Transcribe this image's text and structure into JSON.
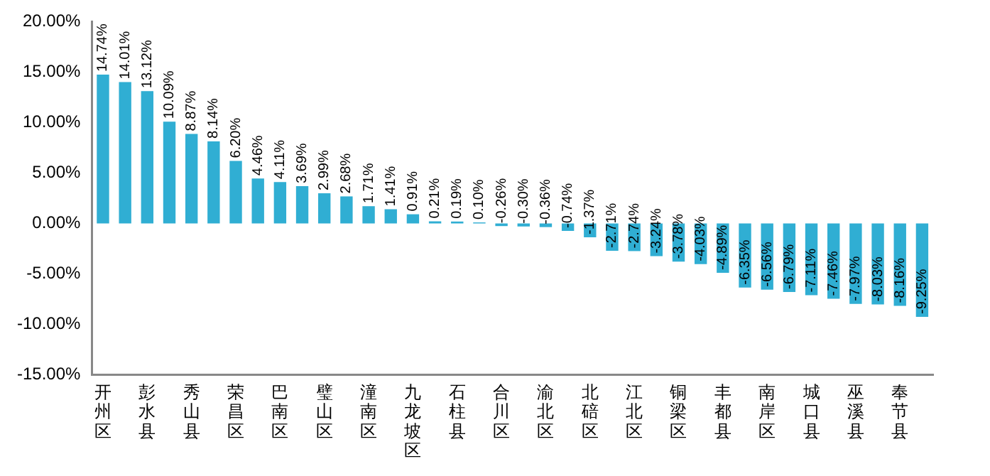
{
  "chart_data": {
    "type": "bar",
    "categories": [
      "开州区",
      null,
      "彭水县",
      null,
      "秀山县",
      null,
      "荣昌区",
      null,
      "巴南区",
      null,
      "璧山区",
      null,
      "潼南区",
      null,
      "九龙坡区",
      null,
      "石柱县",
      null,
      "合川区",
      null,
      "渝北区",
      null,
      "北碚区",
      null,
      "江北区",
      null,
      "铜梁区",
      null,
      "丰都县",
      null,
      "南岸区",
      null,
      "城口县",
      null,
      "巫溪县",
      null,
      "奉节县",
      null
    ],
    "values": [
      14.74,
      14.01,
      13.12,
      10.09,
      8.87,
      8.14,
      6.2,
      4.46,
      4.11,
      3.69,
      2.99,
      2.68,
      1.71,
      1.41,
      0.91,
      0.21,
      0.19,
      0.1,
      -0.26,
      -0.3,
      -0.36,
      -0.74,
      -1.37,
      -2.71,
      -2.74,
      -3.24,
      -3.78,
      -4.03,
      -4.89,
      -6.35,
      -6.56,
      -6.79,
      -7.11,
      -7.46,
      -7.97,
      -8.03,
      -8.16,
      -9.25
    ],
    "value_labels": [
      "14.74%",
      "14.01%",
      "13.12%",
      "10.09%",
      "8.87%",
      "8.14%",
      "6.20%",
      "4.46%",
      "4.11%",
      "3.69%",
      "2.99%",
      "2.68%",
      "1.71%",
      "1.41%",
      "0.91%",
      "0.21%",
      "0.19%",
      "0.10%",
      "-0.26%",
      "-0.30%",
      "-0.36%",
      "-0.74%",
      "-1.37%",
      "-2.71%",
      "-2.74%",
      "-3.24%",
      "-3.78%",
      "-4.03%",
      "-4.89%",
      "-6.35%",
      "-6.56%",
      "-6.79%",
      "-7.11%",
      "-7.46%",
      "-7.97%",
      "-8.03%",
      "-8.16%",
      "-9.25%"
    ],
    "color": "#30aed3",
    "ylim": [
      -15,
      20
    ],
    "yticks": [
      {
        "value": -15,
        "label": "-15.00%"
      },
      {
        "value": -10,
        "label": "-10.00%"
      },
      {
        "value": -5,
        "label": "-5.00%"
      },
      {
        "value": 0,
        "label": "0.00%"
      },
      {
        "value": 5,
        "label": "5.00%"
      },
      {
        "value": 10,
        "label": "10.00%"
      },
      {
        "value": 15,
        "label": "15.00%"
      },
      {
        "value": 20,
        "label": "20.00%"
      }
    ],
    "grid": false,
    "legend": false
  }
}
